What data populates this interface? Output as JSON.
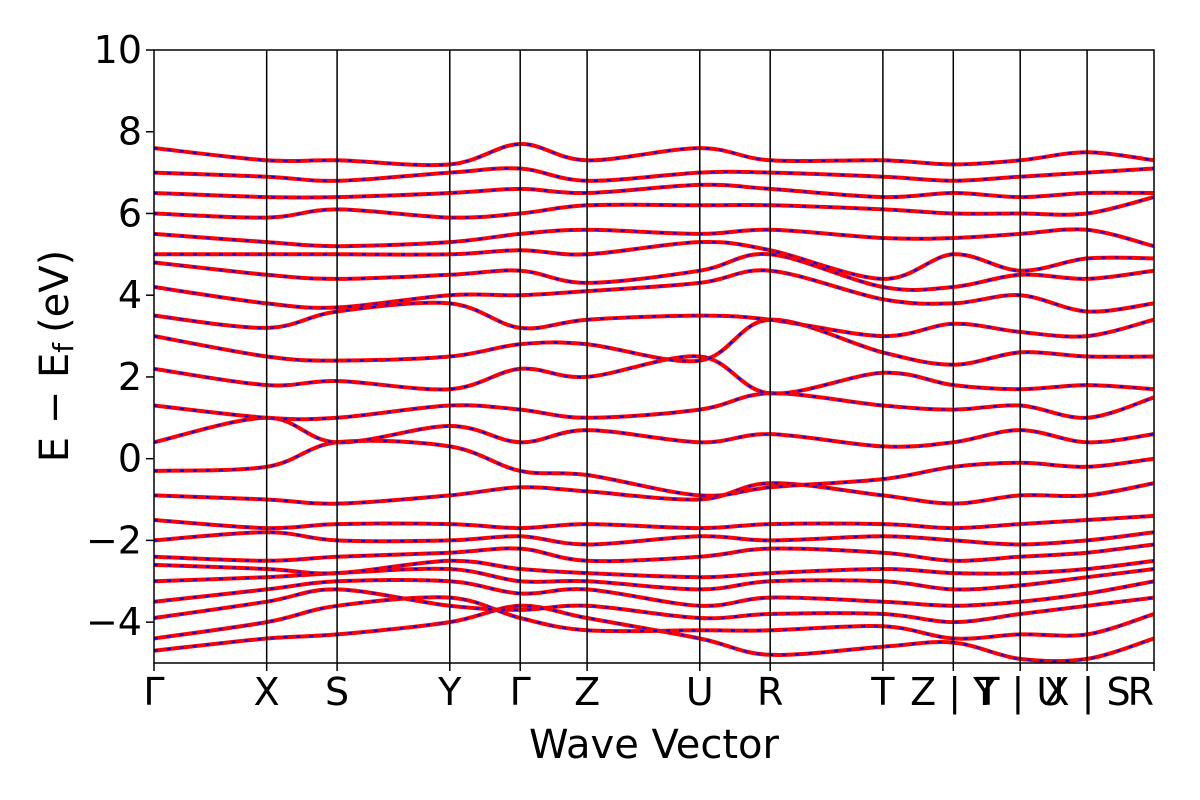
{
  "chart_data": {
    "type": "line",
    "xlabel": "Wave Vector",
    "ylabel": "E − E",
    "ylabel_subscript": "f",
    "ylabel_unit": "(eV)",
    "ylim": [
      -5,
      10
    ],
    "yticks": [
      -4,
      -2,
      0,
      2,
      4,
      6,
      8,
      10
    ],
    "ytick_labels": [
      "−4",
      "−2",
      "0",
      "2",
      "4",
      "6",
      "8",
      "10"
    ],
    "path_segment_lengths": [
      1.6,
      1.0,
      1.6,
      1.0,
      0.95,
      1.6,
      1.0,
      1.6,
      1.0,
      0.95,
      0.95,
      0.95
    ],
    "kpoint_labels": [
      "Γ",
      "X",
      "S",
      "Y",
      "Γ",
      "Z",
      "U",
      "R",
      "T",
      "Z | Y",
      "T | U",
      "X | S",
      "R"
    ],
    "colors": {
      "band_solid": "#ff0000",
      "band_dashed": "#0000ff",
      "axes": "#000000"
    },
    "series": [
      {
        "values": [
          -4.7,
          -4.4,
          -4.3,
          -4.0,
          -3.6,
          -3.9,
          -4.4,
          -4.8,
          -4.6,
          -4.5,
          -4.9,
          -4.9,
          -4.4
        ]
      },
      {
        "values": [
          -4.4,
          -4.0,
          -3.6,
          -3.4,
          -3.9,
          -4.2,
          -4.2,
          -4.2,
          -4.1,
          -4.4,
          -4.3,
          -4.3,
          -3.8
        ]
      },
      {
        "values": [
          -3.9,
          -3.5,
          -3.2,
          -3.6,
          -3.7,
          -3.6,
          -3.9,
          -3.8,
          -3.8,
          -4.0,
          -3.8,
          -3.6,
          -3.4
        ]
      },
      {
        "values": [
          -3.5,
          -3.2,
          -3.0,
          -3.0,
          -3.3,
          -3.2,
          -3.6,
          -3.4,
          -3.5,
          -3.6,
          -3.5,
          -3.3,
          -3.0
        ]
      },
      {
        "values": [
          -3.0,
          -2.9,
          -2.8,
          -2.7,
          -3.0,
          -3.0,
          -3.2,
          -3.0,
          -3.0,
          -3.2,
          -3.1,
          -2.9,
          -2.7
        ]
      },
      {
        "values": [
          -2.6,
          -2.7,
          -2.8,
          -2.5,
          -2.7,
          -2.8,
          -2.9,
          -2.8,
          -2.7,
          -2.8,
          -2.8,
          -2.7,
          -2.5
        ]
      },
      {
        "values": [
          -2.4,
          -2.5,
          -2.4,
          -2.3,
          -2.2,
          -2.5,
          -2.4,
          -2.2,
          -2.3,
          -2.5,
          -2.4,
          -2.3,
          -2.1
        ]
      },
      {
        "values": [
          -2.0,
          -1.8,
          -2.0,
          -2.0,
          -1.9,
          -2.1,
          -1.9,
          -2.0,
          -1.9,
          -2.0,
          -2.1,
          -2.0,
          -1.8
        ]
      },
      {
        "values": [
          -1.5,
          -1.7,
          -1.6,
          -1.6,
          -1.7,
          -1.6,
          -1.7,
          -1.6,
          -1.6,
          -1.7,
          -1.6,
          -1.5,
          -1.4
        ]
      },
      {
        "values": [
          -0.9,
          -1.0,
          -1.1,
          -0.9,
          -0.7,
          -0.8,
          -1.0,
          -0.6,
          -0.9,
          -1.1,
          -0.9,
          -0.9,
          -0.6
        ]
      },
      {
        "values": [
          -0.3,
          -0.2,
          0.4,
          0.3,
          -0.3,
          -0.4,
          -0.9,
          -0.7,
          -0.5,
          -0.2,
          -0.1,
          -0.2,
          0.0
        ]
      },
      {
        "values": [
          0.4,
          1.0,
          0.4,
          0.8,
          0.4,
          0.7,
          0.4,
          0.6,
          0.3,
          0.4,
          0.7,
          0.4,
          0.6
        ]
      },
      {
        "values": [
          1.3,
          1.0,
          1.0,
          1.3,
          1.2,
          1.0,
          1.2,
          1.6,
          1.3,
          1.2,
          1.3,
          1.0,
          1.5
        ]
      },
      {
        "values": [
          2.2,
          1.8,
          1.9,
          1.7,
          2.2,
          2.0,
          2.5,
          1.6,
          2.1,
          1.8,
          1.7,
          1.8,
          1.7
        ]
      },
      {
        "values": [
          3.0,
          2.5,
          2.4,
          2.5,
          2.8,
          2.8,
          2.4,
          3.4,
          2.6,
          2.3,
          2.6,
          2.5,
          2.5
        ]
      },
      {
        "values": [
          3.5,
          3.2,
          3.6,
          3.8,
          3.2,
          3.4,
          3.5,
          3.4,
          3.0,
          3.3,
          3.1,
          3.0,
          3.4
        ]
      },
      {
        "values": [
          4.2,
          3.8,
          3.7,
          4.0,
          4.0,
          4.1,
          4.3,
          4.6,
          3.9,
          3.8,
          4.0,
          3.6,
          3.8
        ]
      },
      {
        "values": [
          4.8,
          4.5,
          4.4,
          4.5,
          4.6,
          4.3,
          4.6,
          5.0,
          4.2,
          4.2,
          4.5,
          4.4,
          4.6
        ]
      },
      {
        "values": [
          5.0,
          5.0,
          5.0,
          5.0,
          5.1,
          5.0,
          5.3,
          5.1,
          4.4,
          5.0,
          4.6,
          4.9,
          4.9
        ]
      },
      {
        "values": [
          5.5,
          5.3,
          5.2,
          5.3,
          5.5,
          5.6,
          5.5,
          5.6,
          5.4,
          5.4,
          5.5,
          5.6,
          5.2
        ]
      },
      {
        "values": [
          6.0,
          5.9,
          6.1,
          5.9,
          6.0,
          6.2,
          6.2,
          6.2,
          6.1,
          6.0,
          6.0,
          6.0,
          6.4
        ]
      },
      {
        "values": [
          6.5,
          6.4,
          6.4,
          6.5,
          6.6,
          6.5,
          6.7,
          6.6,
          6.4,
          6.5,
          6.4,
          6.5,
          6.5
        ]
      },
      {
        "values": [
          7.0,
          6.9,
          6.8,
          7.0,
          7.1,
          6.8,
          7.0,
          7.0,
          6.9,
          6.8,
          6.9,
          7.0,
          7.1
        ]
      },
      {
        "values": [
          7.6,
          7.3,
          7.3,
          7.2,
          7.7,
          7.3,
          7.6,
          7.3,
          7.3,
          7.2,
          7.3,
          7.5,
          7.3
        ]
      }
    ]
  }
}
